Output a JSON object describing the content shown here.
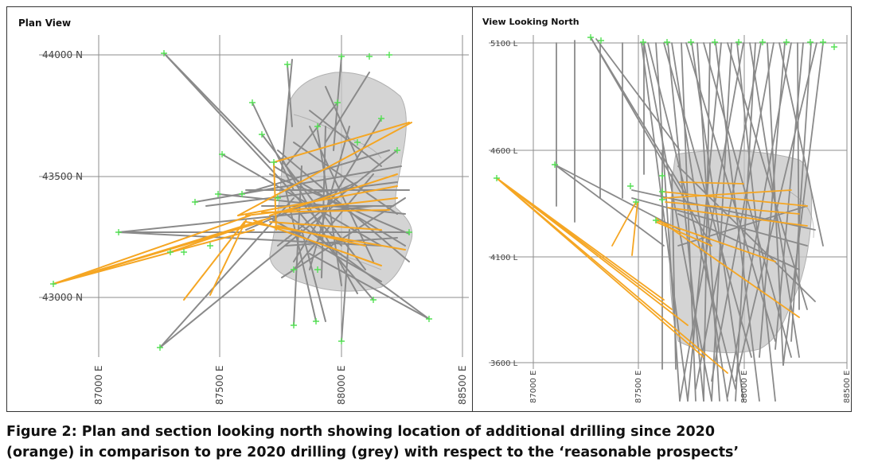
{
  "plan_view": {
    "title": "Plan View",
    "northing_labels": [
      "44000 N",
      "43500 N",
      "43000 N"
    ],
    "easting_labels": [
      "87000 E",
      "87500 E",
      "88000 E",
      "88500 E"
    ]
  },
  "section_view": {
    "title": "View Looking North",
    "level_labels": [
      "5100 L",
      "4600 L",
      "4100 L",
      "3600 L"
    ],
    "easting_labels": [
      "87000 E",
      "87500 E",
      "88000 E",
      "88500 E"
    ]
  },
  "legend_colors": {
    "pre_2020_drilling": "#8a8a8a",
    "post_2020_drilling": "#f5a623",
    "collar_marker": "#55e055",
    "prospect_shell": "#c8c8c8"
  },
  "caption": {
    "line1": "Figure 2: Plan and section looking north showing location of additional drilling since 2020",
    "line2": "(orange) in comparison to pre 2020 drilling (grey) with respect to the ‘reasonable prospects’"
  }
}
